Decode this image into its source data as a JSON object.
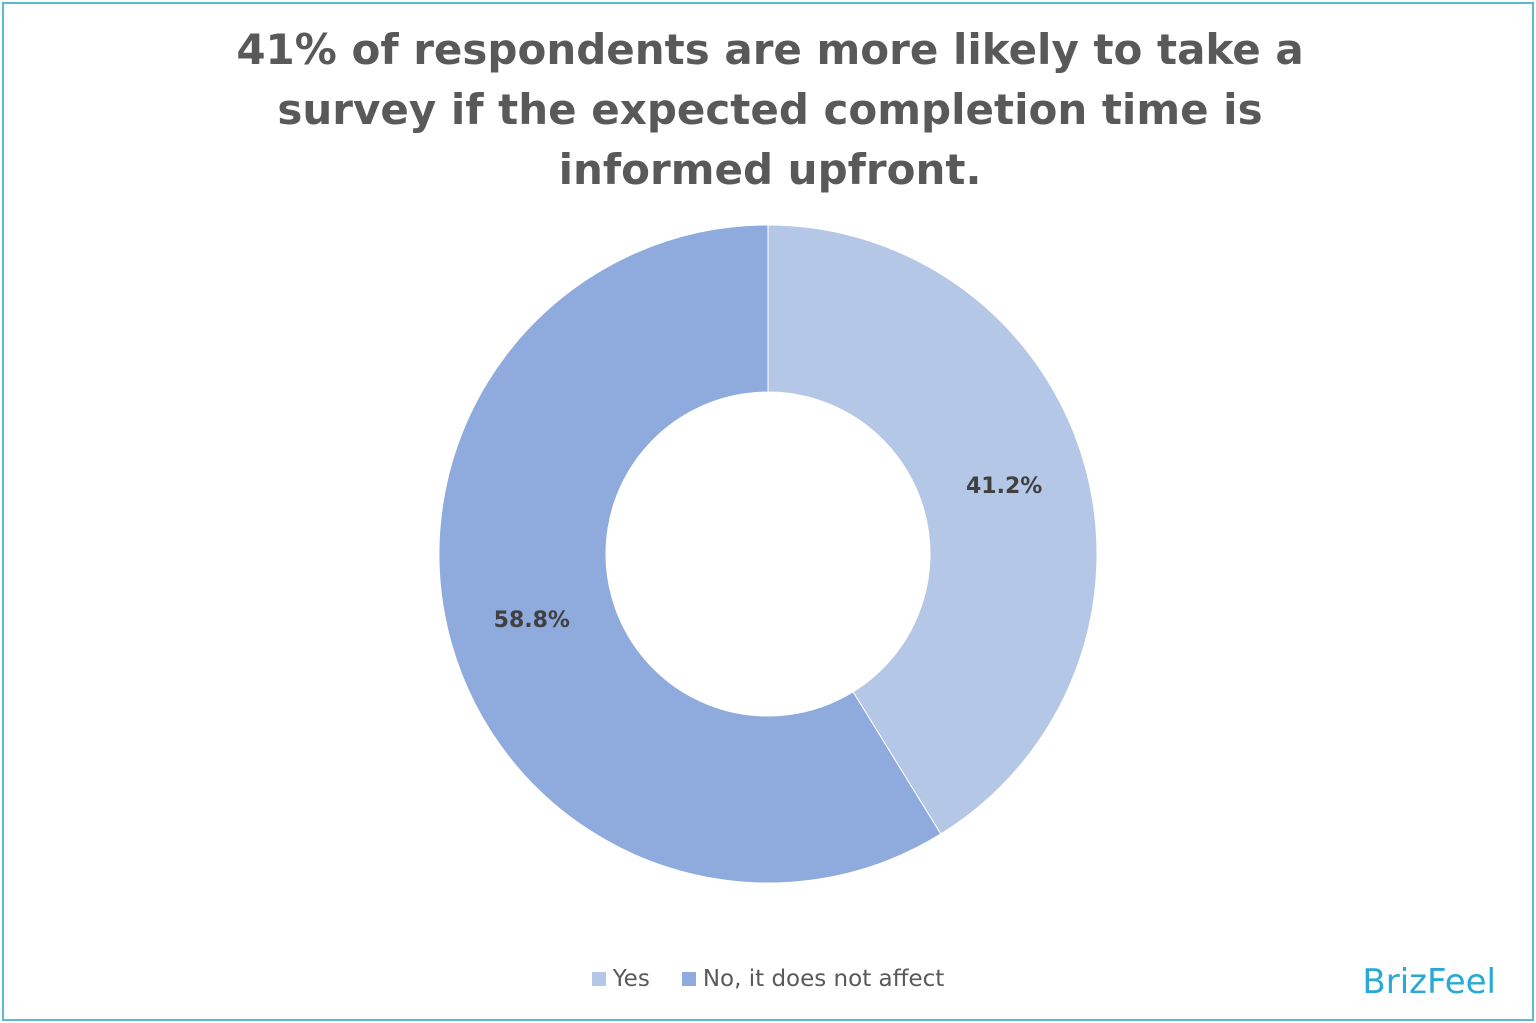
{
  "chart_data": {
    "type": "donut",
    "title": "41% of respondents are more likely to take a survey if the expected completion time is informed upfront.",
    "categories": [
      "Yes",
      "No, it does not affect"
    ],
    "values": [
      41.2,
      58.8
    ],
    "value_labels": [
      "41.2%",
      "58.8%"
    ],
    "colors": [
      "#b4c7e7",
      "#8faadc"
    ],
    "legend": "bottom",
    "watermark": "BrizFeel"
  }
}
